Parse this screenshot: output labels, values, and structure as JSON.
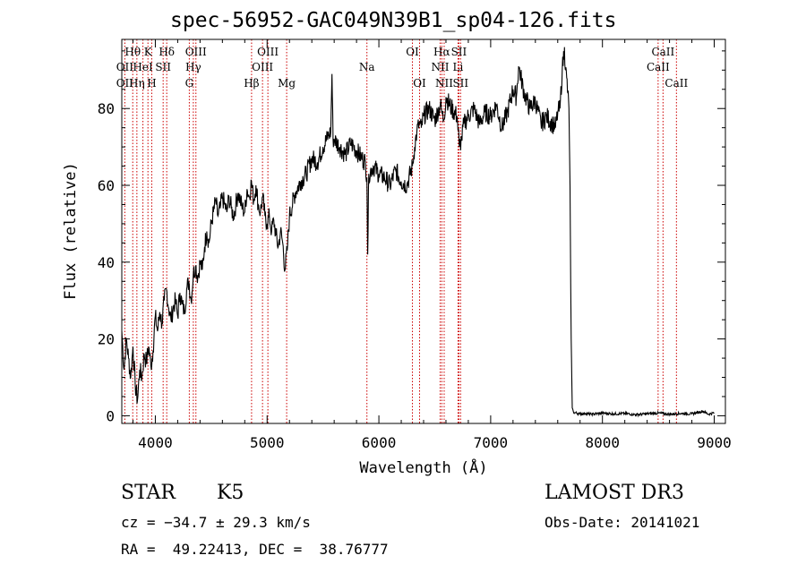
{
  "chart_data": {
    "type": "line",
    "title": "spec-56952-GAC049N39B1_sp04-126.fits",
    "xlabel": "Wavelength (Å)",
    "ylabel": "Flux (relative)",
    "xlim": [
      3700,
      9100
    ],
    "ylim": [
      -2,
      98
    ],
    "xticks": [
      4000,
      5000,
      6000,
      7000,
      8000,
      9000
    ],
    "yticks": [
      0,
      20,
      40,
      60,
      80
    ],
    "grid": false,
    "series": [
      {
        "x": [
          3700,
          3720,
          3740,
          3760,
          3780,
          3800,
          3820,
          3840,
          3860,
          3880,
          3900,
          3920,
          3940,
          3960,
          3980,
          4000,
          4020,
          4040,
          4060,
          4080,
          4100,
          4120,
          4140,
          4160,
          4180,
          4200,
          4220,
          4240,
          4260,
          4280,
          4300,
          4320,
          4340,
          4360,
          4380,
          4400,
          4420,
          4440,
          4460,
          4480,
          4500,
          4520,
          4540,
          4560,
          4580,
          4600,
          4620,
          4640,
          4660,
          4680,
          4700,
          4720,
          4740,
          4760,
          4780,
          4800,
          4820,
          4840,
          4860,
          4880,
          4900,
          4920,
          4940,
          4960,
          4980,
          5000,
          5020,
          5040,
          5060,
          5080,
          5100,
          5120,
          5140,
          5160,
          5180,
          5200,
          5250,
          5300,
          5350,
          5400,
          5450,
          5500,
          5550,
          5570,
          5580,
          5590,
          5600,
          5650,
          5700,
          5750,
          5800,
          5850,
          5880,
          5893,
          5900,
          5910,
          5950,
          6000,
          6050,
          6100,
          6150,
          6200,
          6250,
          6300,
          6320,
          6340,
          6360,
          6380,
          6400,
          6450,
          6500,
          6550,
          6563,
          6580,
          6600,
          6650,
          6700,
          6720,
          6740,
          6760,
          6800,
          6850,
          6900,
          6950,
          7000,
          7050,
          7100,
          7150,
          7200,
          7230,
          7250,
          7300,
          7350,
          7400,
          7450,
          7500,
          7550,
          7580,
          7600,
          7620,
          7640,
          7660,
          7670,
          7680,
          7690,
          7700,
          7710,
          7720,
          7730,
          7740,
          7750,
          7800,
          7850,
          7900,
          8000,
          8100,
          8200,
          8300,
          8400,
          8500,
          8600,
          8700,
          8800,
          8900,
          8950,
          9000
        ],
        "y": [
          22,
          12,
          20,
          15,
          10,
          18,
          8,
          4,
          12,
          10,
          16,
          14,
          18,
          13,
          17,
          26,
          22,
          27,
          24,
          30,
          33,
          28,
          25,
          28,
          30,
          26,
          32,
          29,
          27,
          33,
          35,
          30,
          37,
          39,
          36,
          40,
          38,
          44,
          48,
          45,
          50,
          53,
          56,
          52,
          54,
          57,
          55,
          53,
          57,
          54,
          52,
          55,
          58,
          56,
          54,
          53,
          59,
          57,
          61,
          56,
          60,
          55,
          53,
          57,
          52,
          50,
          52,
          48,
          51,
          47,
          44,
          48,
          45,
          38,
          43,
          52,
          58,
          61,
          63,
          67,
          66,
          70,
          73,
          74,
          89,
          72,
          72,
          70,
          68,
          71,
          69,
          67,
          66,
          62,
          42,
          63,
          65,
          63,
          62,
          60,
          64,
          61,
          60,
          65,
          70,
          74,
          76,
          75,
          78,
          80,
          77,
          81,
          79,
          77,
          83,
          80,
          78,
          70,
          72,
          76,
          78,
          80,
          76,
          79,
          78,
          81,
          75,
          79,
          85,
          83,
          91,
          84,
          80,
          82,
          76,
          78,
          76,
          75,
          79,
          80,
          90,
          96,
          90,
          88,
          84,
          80,
          60,
          20,
          2,
          1,
          0.8,
          0.5,
          0.6,
          0.4,
          0.7,
          0.5,
          0.6,
          0.3,
          0.5,
          0.7,
          0.4,
          0.6,
          0.5,
          1.2,
          0.4,
          0.8
        ]
      }
    ],
    "line_labels": [
      {
        "label": "Hθ",
        "x": 3798,
        "row": 1
      },
      {
        "label": "OII",
        "x": 3727,
        "row": 2
      },
      {
        "label": "OII",
        "x": 3727,
        "row": 3
      },
      {
        "label": "K",
        "x": 3934,
        "row": 1
      },
      {
        "label": "HeI",
        "x": 3889,
        "row": 2
      },
      {
        "label": "Hη",
        "x": 3835,
        "row": 3
      },
      {
        "label": "H",
        "x": 3968,
        "row": 3
      },
      {
        "label": "Hδ",
        "x": 4102,
        "row": 1
      },
      {
        "label": "SII",
        "x": 4070,
        "row": 2
      },
      {
        "label": "OIII",
        "x": 4363,
        "row": 1
      },
      {
        "label": "Hγ",
        "x": 4340,
        "row": 2
      },
      {
        "label": "G",
        "x": 4304,
        "row": 3
      },
      {
        "label": "Hβ",
        "x": 4861,
        "row": 3
      },
      {
        "label": "OIII",
        "x": 5007,
        "row": 1
      },
      {
        "label": "OIII",
        "x": 4959,
        "row": 2
      },
      {
        "label": "Mg",
        "x": 5175,
        "row": 3
      },
      {
        "label": "Na",
        "x": 5893,
        "row": 2
      },
      {
        "label": "OI",
        "x": 6300,
        "row": 1
      },
      {
        "label": "OI",
        "x": 6364,
        "row": 3
      },
      {
        "label": "Hα",
        "x": 6563,
        "row": 1
      },
      {
        "label": "SII",
        "x": 6716,
        "row": 1
      },
      {
        "label": "NII",
        "x": 6548,
        "row": 2
      },
      {
        "label": "Li",
        "x": 6708,
        "row": 2
      },
      {
        "label": "NII",
        "x": 6584,
        "row": 3
      },
      {
        "label": "SII",
        "x": 6731,
        "row": 3
      },
      {
        "label": "CaII",
        "x": 8542,
        "row": 1
      },
      {
        "label": "CaII",
        "x": 8498,
        "row": 2
      },
      {
        "label": "CaII",
        "x": 8662,
        "row": 3
      }
    ],
    "line_markers_x": [
      3727,
      3798,
      3835,
      3889,
      3934,
      3968,
      4070,
      4102,
      4304,
      4340,
      4363,
      4861,
      4959,
      5007,
      5175,
      5893,
      6300,
      6364,
      6548,
      6563,
      6584,
      6708,
      6716,
      6731,
      8498,
      8542,
      8662
    ],
    "marker_color": "#cc0000"
  },
  "info": {
    "object_class": "STAR",
    "subclass": "K5",
    "survey": "LAMOST DR3",
    "redshift": "cz = −34.7 ± 29.3 km/s",
    "obs_date": "Obs-Date: 20141021",
    "coords": "RA =  49.22413, DEC =  38.76777"
  }
}
